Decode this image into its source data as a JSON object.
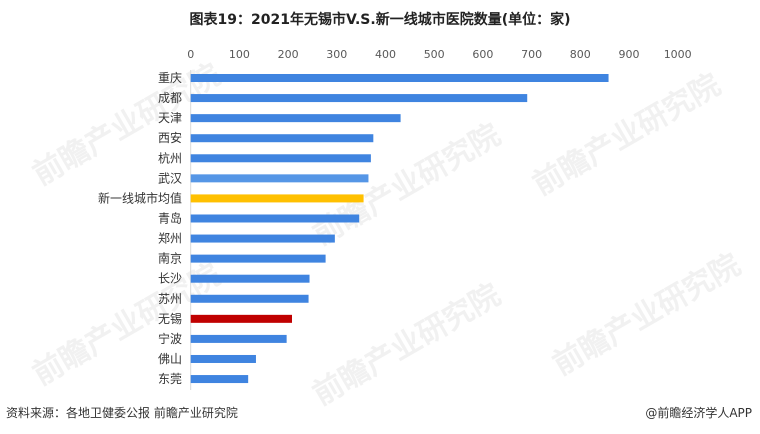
{
  "chart_data": {
    "type": "bar",
    "orientation": "horizontal",
    "title": "图表19：2021年无锡市V.S.新一线城市医院数量(单位：家)",
    "xlabel": "",
    "ylabel": "",
    "xlim": [
      0,
      1000
    ],
    "xticks": [
      "0",
      "100",
      "200",
      "300",
      "400",
      "500",
      "600",
      "700",
      "800",
      "900",
      "1000"
    ],
    "categories": [
      "重庆",
      "成都",
      "天津",
      "西安",
      "杭州",
      "武汉",
      "新一线城市均值",
      "青岛",
      "郑州",
      "南京",
      "长沙",
      "苏州",
      "无锡",
      "宁波",
      "佛山",
      "东莞"
    ],
    "values": [
      858,
      691,
      431,
      375,
      370,
      365,
      355,
      346,
      296,
      277,
      244,
      242,
      208,
      197,
      134,
      118
    ],
    "colors": [
      "#3f84e0",
      "#3f84e0",
      "#3f84e0",
      "#3f84e0",
      "#3f84e0",
      "#5596e6",
      "#ffc000",
      "#3f84e0",
      "#3f84e0",
      "#3f84e0",
      "#3f84e0",
      "#3f84e0",
      "#c00000",
      "#3f84e0",
      "#3f84e0",
      "#3f84e0"
    ],
    "grid": false,
    "legend": "none"
  },
  "footer": {
    "source": "资料来源：各地卫健委公报 前瞻产业研究院",
    "brand": "@前瞻经济学人APP"
  },
  "watermark": "前瞻产业研究院"
}
